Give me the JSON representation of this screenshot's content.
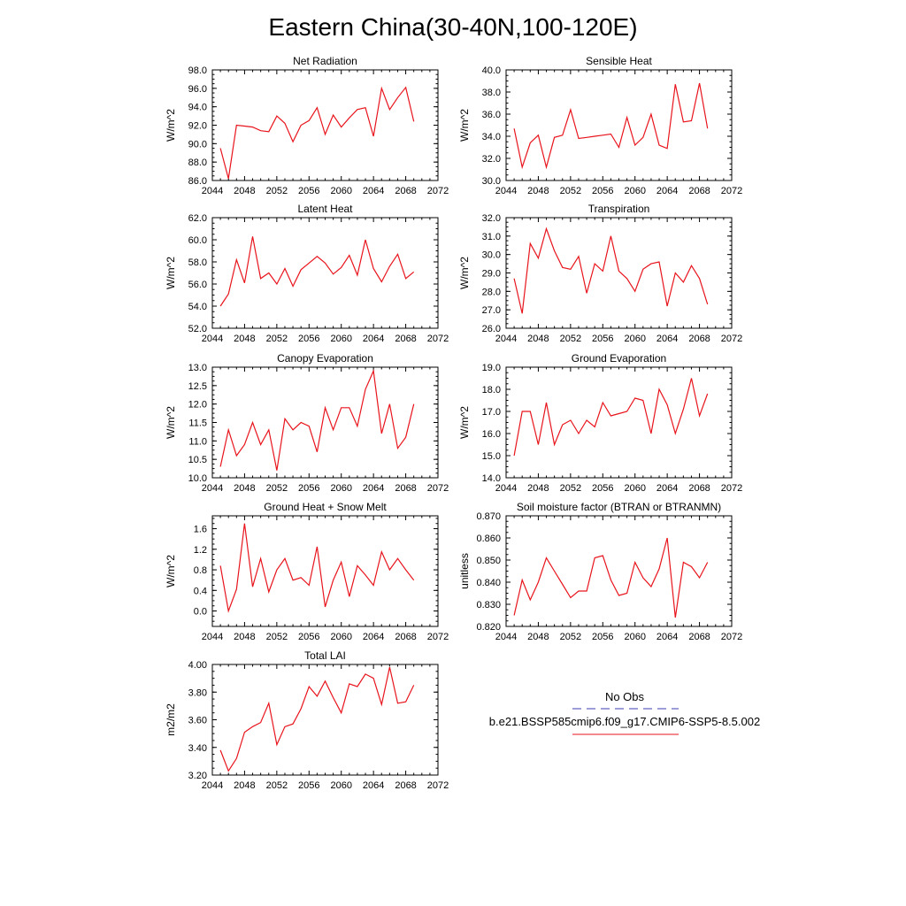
{
  "figure": {
    "title": "Eastern China(30-40N,100-120E)",
    "line_color": "#e8141c",
    "obs_color": "#3b3bb5"
  },
  "legend": {
    "obs_label": "No Obs",
    "model_label": "b.e21.BSSP585cmip6.f09_g17.CMIP6-SSP5-8.5.002"
  },
  "chart_data": [
    {
      "type": "line",
      "title": "Net Radiation",
      "ylabel": "W/m^2",
      "xlim": [
        2044,
        2072
      ],
      "xticks": [
        "2044",
        "2048",
        "2052",
        "2056",
        "2060",
        "2064",
        "2068",
        "2072"
      ],
      "ylim": [
        86,
        98
      ],
      "yticks": [
        "86.0",
        "88.0",
        "90.0",
        "92.0",
        "94.0",
        "96.0",
        "98.0"
      ],
      "x": [
        2045,
        2046,
        2047,
        2048,
        2049,
        2050,
        2051,
        2052,
        2053,
        2054,
        2055,
        2056,
        2057,
        2058,
        2059,
        2060,
        2061,
        2062,
        2063,
        2064,
        2065,
        2066,
        2067,
        2068,
        2069
      ],
      "values": [
        89.5,
        86.2,
        92.0,
        91.9,
        91.8,
        91.4,
        91.3,
        93.0,
        92.2,
        90.2,
        92.0,
        92.5,
        93.9,
        91.0,
        93.1,
        91.8,
        92.8,
        93.7,
        93.9,
        90.8,
        96.0,
        93.7,
        95.0,
        96.1,
        92.4
      ]
    },
    {
      "type": "line",
      "title": "Sensible Heat",
      "ylabel": "W/m^2",
      "xlim": [
        2044,
        2072
      ],
      "xticks": [
        "2044",
        "2048",
        "2052",
        "2056",
        "2060",
        "2064",
        "2068",
        "2072"
      ],
      "ylim": [
        30,
        40
      ],
      "yticks": [
        "30.0",
        "32.0",
        "34.0",
        "36.0",
        "38.0",
        "40.0"
      ],
      "x": [
        2045,
        2046,
        2047,
        2048,
        2049,
        2050,
        2051,
        2052,
        2053,
        2054,
        2055,
        2056,
        2057,
        2058,
        2059,
        2060,
        2061,
        2062,
        2063,
        2064,
        2065,
        2066,
        2067,
        2068,
        2069
      ],
      "values": [
        34.7,
        31.2,
        33.4,
        34.1,
        31.2,
        33.9,
        34.1,
        36.4,
        33.8,
        33.9,
        34.0,
        34.1,
        34.2,
        33.0,
        35.7,
        33.2,
        33.9,
        36.0,
        33.2,
        32.9,
        38.7,
        35.3,
        35.4,
        38.8,
        34.7
      ]
    },
    {
      "type": "line",
      "title": "Latent Heat",
      "ylabel": "W/m^2",
      "xlim": [
        2044,
        2072
      ],
      "xticks": [
        "2044",
        "2048",
        "2052",
        "2056",
        "2060",
        "2064",
        "2068",
        "2072"
      ],
      "ylim": [
        52,
        62
      ],
      "yticks": [
        "52.0",
        "54.0",
        "56.0",
        "58.0",
        "60.0",
        "62.0"
      ],
      "x": [
        2045,
        2046,
        2047,
        2048,
        2049,
        2050,
        2051,
        2052,
        2053,
        2054,
        2055,
        2056,
        2057,
        2058,
        2059,
        2060,
        2061,
        2062,
        2063,
        2064,
        2065,
        2066,
        2067,
        2068,
        2069
      ],
      "values": [
        54.0,
        55.1,
        58.2,
        56.1,
        60.3,
        56.5,
        57.0,
        56.0,
        57.4,
        55.8,
        57.3,
        57.9,
        58.5,
        57.9,
        56.9,
        57.5,
        58.6,
        56.8,
        60.0,
        57.4,
        56.2,
        57.6,
        58.7,
        56.5,
        57.1
      ]
    },
    {
      "type": "line",
      "title": "Transpiration",
      "ylabel": "W/m^2",
      "xlim": [
        2044,
        2072
      ],
      "xticks": [
        "2044",
        "2048",
        "2052",
        "2056",
        "2060",
        "2064",
        "2068",
        "2072"
      ],
      "ylim": [
        26,
        32
      ],
      "yticks": [
        "26.0",
        "27.0",
        "28.0",
        "29.0",
        "30.0",
        "31.0",
        "32.0"
      ],
      "x": [
        2045,
        2046,
        2047,
        2048,
        2049,
        2050,
        2051,
        2052,
        2053,
        2054,
        2055,
        2056,
        2057,
        2058,
        2059,
        2060,
        2061,
        2062,
        2063,
        2064,
        2065,
        2066,
        2067,
        2068,
        2069
      ],
      "values": [
        28.7,
        26.8,
        30.6,
        29.8,
        31.4,
        30.2,
        29.3,
        29.2,
        29.9,
        27.9,
        29.5,
        29.1,
        31.0,
        29.1,
        28.7,
        28.0,
        29.2,
        29.5,
        29.6,
        27.2,
        29.0,
        28.5,
        29.4,
        28.7,
        27.3
      ]
    },
    {
      "type": "line",
      "title": "Canopy Evaporation",
      "ylabel": "W/m^2",
      "xlim": [
        2044,
        2072
      ],
      "xticks": [
        "2044",
        "2048",
        "2052",
        "2056",
        "2060",
        "2064",
        "2068",
        "2072"
      ],
      "ylim": [
        10,
        13
      ],
      "yticks": [
        "10.0",
        "10.5",
        "11.0",
        "11.5",
        "12.0",
        "12.5",
        "13.0"
      ],
      "x": [
        2045,
        2046,
        2047,
        2048,
        2049,
        2050,
        2051,
        2052,
        2053,
        2054,
        2055,
        2056,
        2057,
        2058,
        2059,
        2060,
        2061,
        2062,
        2063,
        2064,
        2065,
        2066,
        2067,
        2068,
        2069
      ],
      "values": [
        10.3,
        11.3,
        10.6,
        10.9,
        11.5,
        10.9,
        11.3,
        10.2,
        11.6,
        11.3,
        11.5,
        11.4,
        10.7,
        11.9,
        11.3,
        11.9,
        11.9,
        11.4,
        12.4,
        12.9,
        11.2,
        12.0,
        10.8,
        11.1,
        12.0
      ]
    },
    {
      "type": "line",
      "title": "Ground Evaporation",
      "ylabel": "W/m^2",
      "xlim": [
        2044,
        2072
      ],
      "xticks": [
        "2044",
        "2048",
        "2052",
        "2056",
        "2060",
        "2064",
        "2068",
        "2072"
      ],
      "ylim": [
        14,
        19
      ],
      "yticks": [
        "14.0",
        "15.0",
        "16.0",
        "17.0",
        "18.0",
        "19.0"
      ],
      "x": [
        2045,
        2046,
        2047,
        2048,
        2049,
        2050,
        2051,
        2052,
        2053,
        2054,
        2055,
        2056,
        2057,
        2058,
        2059,
        2060,
        2061,
        2062,
        2063,
        2064,
        2065,
        2066,
        2067,
        2068,
        2069
      ],
      "values": [
        15.0,
        17.0,
        17.0,
        15.5,
        17.4,
        15.5,
        16.4,
        16.6,
        16.0,
        16.6,
        16.3,
        17.4,
        16.8,
        16.9,
        17.0,
        17.6,
        17.5,
        16.0,
        18.0,
        17.3,
        16.0,
        17.1,
        18.5,
        16.8,
        17.8
      ]
    },
    {
      "type": "line",
      "title": "Ground Heat + Snow Melt",
      "ylabel": "W/m^2",
      "xlim": [
        2044,
        2072
      ],
      "xticks": [
        "2044",
        "2048",
        "2052",
        "2056",
        "2060",
        "2064",
        "2068",
        "2072"
      ],
      "ylim": [
        -0.3,
        1.85
      ],
      "yticks": [
        "0.0",
        "0.4",
        "0.8",
        "1.2",
        "1.6"
      ],
      "ytick_values": [
        0,
        0.4,
        0.8,
        1.2,
        1.6
      ],
      "x": [
        2045,
        2046,
        2047,
        2048,
        2049,
        2050,
        2051,
        2052,
        2053,
        2054,
        2055,
        2056,
        2057,
        2058,
        2059,
        2060,
        2061,
        2062,
        2063,
        2064,
        2065,
        2066,
        2067,
        2068,
        2069
      ],
      "values": [
        0.88,
        0.0,
        0.42,
        1.7,
        0.47,
        1.02,
        0.37,
        0.8,
        1.02,
        0.6,
        0.65,
        0.5,
        1.25,
        0.08,
        0.6,
        0.95,
        0.28,
        0.88,
        0.7,
        0.5,
        1.15,
        0.8,
        1.02,
        0.8,
        0.6
      ]
    },
    {
      "type": "line",
      "title": "Soil moisture factor (BTRAN or BTRANMN)",
      "ylabel": "unitless",
      "xlim": [
        2044,
        2072
      ],
      "xticks": [
        "2044",
        "2048",
        "2052",
        "2056",
        "2060",
        "2064",
        "2068",
        "2072"
      ],
      "ylim": [
        0.82,
        0.87
      ],
      "yticks": [
        "0.820",
        "0.830",
        "0.840",
        "0.850",
        "0.860",
        "0.870"
      ],
      "x": [
        2045,
        2046,
        2047,
        2048,
        2049,
        2050,
        2051,
        2052,
        2053,
        2054,
        2055,
        2056,
        2057,
        2058,
        2059,
        2060,
        2061,
        2062,
        2063,
        2064,
        2065,
        2066,
        2067,
        2068,
        2069
      ],
      "values": [
        0.825,
        0.841,
        0.832,
        0.84,
        0.851,
        0.845,
        0.839,
        0.833,
        0.836,
        0.836,
        0.851,
        0.852,
        0.841,
        0.834,
        0.835,
        0.849,
        0.842,
        0.838,
        0.846,
        0.86,
        0.824,
        0.849,
        0.847,
        0.842,
        0.849
      ]
    },
    {
      "type": "line",
      "title": "Total LAI",
      "ylabel": "m2/m2",
      "xlim": [
        2044,
        2072
      ],
      "xticks": [
        "2044",
        "2048",
        "2052",
        "2056",
        "2060",
        "2064",
        "2068",
        "2072"
      ],
      "ylim": [
        3.2,
        4.0
      ],
      "yticks": [
        "3.20",
        "3.40",
        "3.60",
        "3.80",
        "4.00"
      ],
      "x": [
        2045,
        2046,
        2047,
        2048,
        2049,
        2050,
        2051,
        2052,
        2053,
        2054,
        2055,
        2056,
        2057,
        2058,
        2059,
        2060,
        2061,
        2062,
        2063,
        2064,
        2065,
        2066,
        2067,
        2068,
        2069
      ],
      "values": [
        3.38,
        3.23,
        3.32,
        3.51,
        3.55,
        3.58,
        3.72,
        3.42,
        3.55,
        3.57,
        3.68,
        3.84,
        3.77,
        3.88,
        3.76,
        3.65,
        3.86,
        3.84,
        3.93,
        3.9,
        3.71,
        3.98,
        3.72,
        3.73,
        3.85
      ]
    }
  ]
}
